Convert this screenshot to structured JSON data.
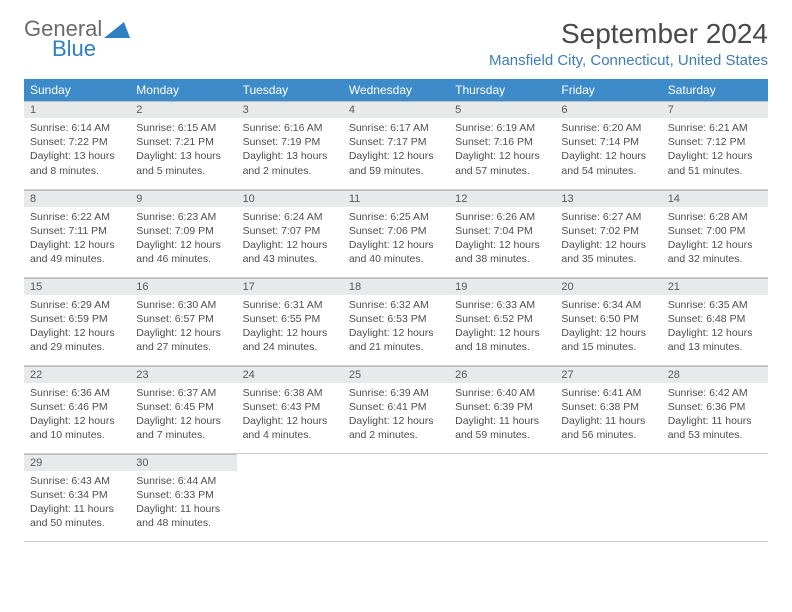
{
  "logo": {
    "word1": "General",
    "word2": "Blue",
    "brand_color": "#2f7fc2",
    "gray": "#6b6b6b"
  },
  "title": "September 2024",
  "location": "Mansfield City, Connecticut, United States",
  "header_bg": "#3d8bc9",
  "daynum_bg": "#e7e9eb",
  "text_color": "#4a4a4a",
  "columns": [
    "Sunday",
    "Monday",
    "Tuesday",
    "Wednesday",
    "Thursday",
    "Friday",
    "Saturday"
  ],
  "weeks": [
    [
      {
        "n": "1",
        "sunrise": "6:14 AM",
        "sunset": "7:22 PM",
        "daylight": "13 hours and 8 minutes."
      },
      {
        "n": "2",
        "sunrise": "6:15 AM",
        "sunset": "7:21 PM",
        "daylight": "13 hours and 5 minutes."
      },
      {
        "n": "3",
        "sunrise": "6:16 AM",
        "sunset": "7:19 PM",
        "daylight": "13 hours and 2 minutes."
      },
      {
        "n": "4",
        "sunrise": "6:17 AM",
        "sunset": "7:17 PM",
        "daylight": "12 hours and 59 minutes."
      },
      {
        "n": "5",
        "sunrise": "6:19 AM",
        "sunset": "7:16 PM",
        "daylight": "12 hours and 57 minutes."
      },
      {
        "n": "6",
        "sunrise": "6:20 AM",
        "sunset": "7:14 PM",
        "daylight": "12 hours and 54 minutes."
      },
      {
        "n": "7",
        "sunrise": "6:21 AM",
        "sunset": "7:12 PM",
        "daylight": "12 hours and 51 minutes."
      }
    ],
    [
      {
        "n": "8",
        "sunrise": "6:22 AM",
        "sunset": "7:11 PM",
        "daylight": "12 hours and 49 minutes."
      },
      {
        "n": "9",
        "sunrise": "6:23 AM",
        "sunset": "7:09 PM",
        "daylight": "12 hours and 46 minutes."
      },
      {
        "n": "10",
        "sunrise": "6:24 AM",
        "sunset": "7:07 PM",
        "daylight": "12 hours and 43 minutes."
      },
      {
        "n": "11",
        "sunrise": "6:25 AM",
        "sunset": "7:06 PM",
        "daylight": "12 hours and 40 minutes."
      },
      {
        "n": "12",
        "sunrise": "6:26 AM",
        "sunset": "7:04 PM",
        "daylight": "12 hours and 38 minutes."
      },
      {
        "n": "13",
        "sunrise": "6:27 AM",
        "sunset": "7:02 PM",
        "daylight": "12 hours and 35 minutes."
      },
      {
        "n": "14",
        "sunrise": "6:28 AM",
        "sunset": "7:00 PM",
        "daylight": "12 hours and 32 minutes."
      }
    ],
    [
      {
        "n": "15",
        "sunrise": "6:29 AM",
        "sunset": "6:59 PM",
        "daylight": "12 hours and 29 minutes."
      },
      {
        "n": "16",
        "sunrise": "6:30 AM",
        "sunset": "6:57 PM",
        "daylight": "12 hours and 27 minutes."
      },
      {
        "n": "17",
        "sunrise": "6:31 AM",
        "sunset": "6:55 PM",
        "daylight": "12 hours and 24 minutes."
      },
      {
        "n": "18",
        "sunrise": "6:32 AM",
        "sunset": "6:53 PM",
        "daylight": "12 hours and 21 minutes."
      },
      {
        "n": "19",
        "sunrise": "6:33 AM",
        "sunset": "6:52 PM",
        "daylight": "12 hours and 18 minutes."
      },
      {
        "n": "20",
        "sunrise": "6:34 AM",
        "sunset": "6:50 PM",
        "daylight": "12 hours and 15 minutes."
      },
      {
        "n": "21",
        "sunrise": "6:35 AM",
        "sunset": "6:48 PM",
        "daylight": "12 hours and 13 minutes."
      }
    ],
    [
      {
        "n": "22",
        "sunrise": "6:36 AM",
        "sunset": "6:46 PM",
        "daylight": "12 hours and 10 minutes."
      },
      {
        "n": "23",
        "sunrise": "6:37 AM",
        "sunset": "6:45 PM",
        "daylight": "12 hours and 7 minutes."
      },
      {
        "n": "24",
        "sunrise": "6:38 AM",
        "sunset": "6:43 PM",
        "daylight": "12 hours and 4 minutes."
      },
      {
        "n": "25",
        "sunrise": "6:39 AM",
        "sunset": "6:41 PM",
        "daylight": "12 hours and 2 minutes."
      },
      {
        "n": "26",
        "sunrise": "6:40 AM",
        "sunset": "6:39 PM",
        "daylight": "11 hours and 59 minutes."
      },
      {
        "n": "27",
        "sunrise": "6:41 AM",
        "sunset": "6:38 PM",
        "daylight": "11 hours and 56 minutes."
      },
      {
        "n": "28",
        "sunrise": "6:42 AM",
        "sunset": "6:36 PM",
        "daylight": "11 hours and 53 minutes."
      }
    ],
    [
      {
        "n": "29",
        "sunrise": "6:43 AM",
        "sunset": "6:34 PM",
        "daylight": "11 hours and 50 minutes."
      },
      {
        "n": "30",
        "sunrise": "6:44 AM",
        "sunset": "6:33 PM",
        "daylight": "11 hours and 48 minutes."
      },
      null,
      null,
      null,
      null,
      null
    ]
  ],
  "labels": {
    "sunrise": "Sunrise: ",
    "sunset": "Sunset: ",
    "daylight": "Daylight: "
  }
}
